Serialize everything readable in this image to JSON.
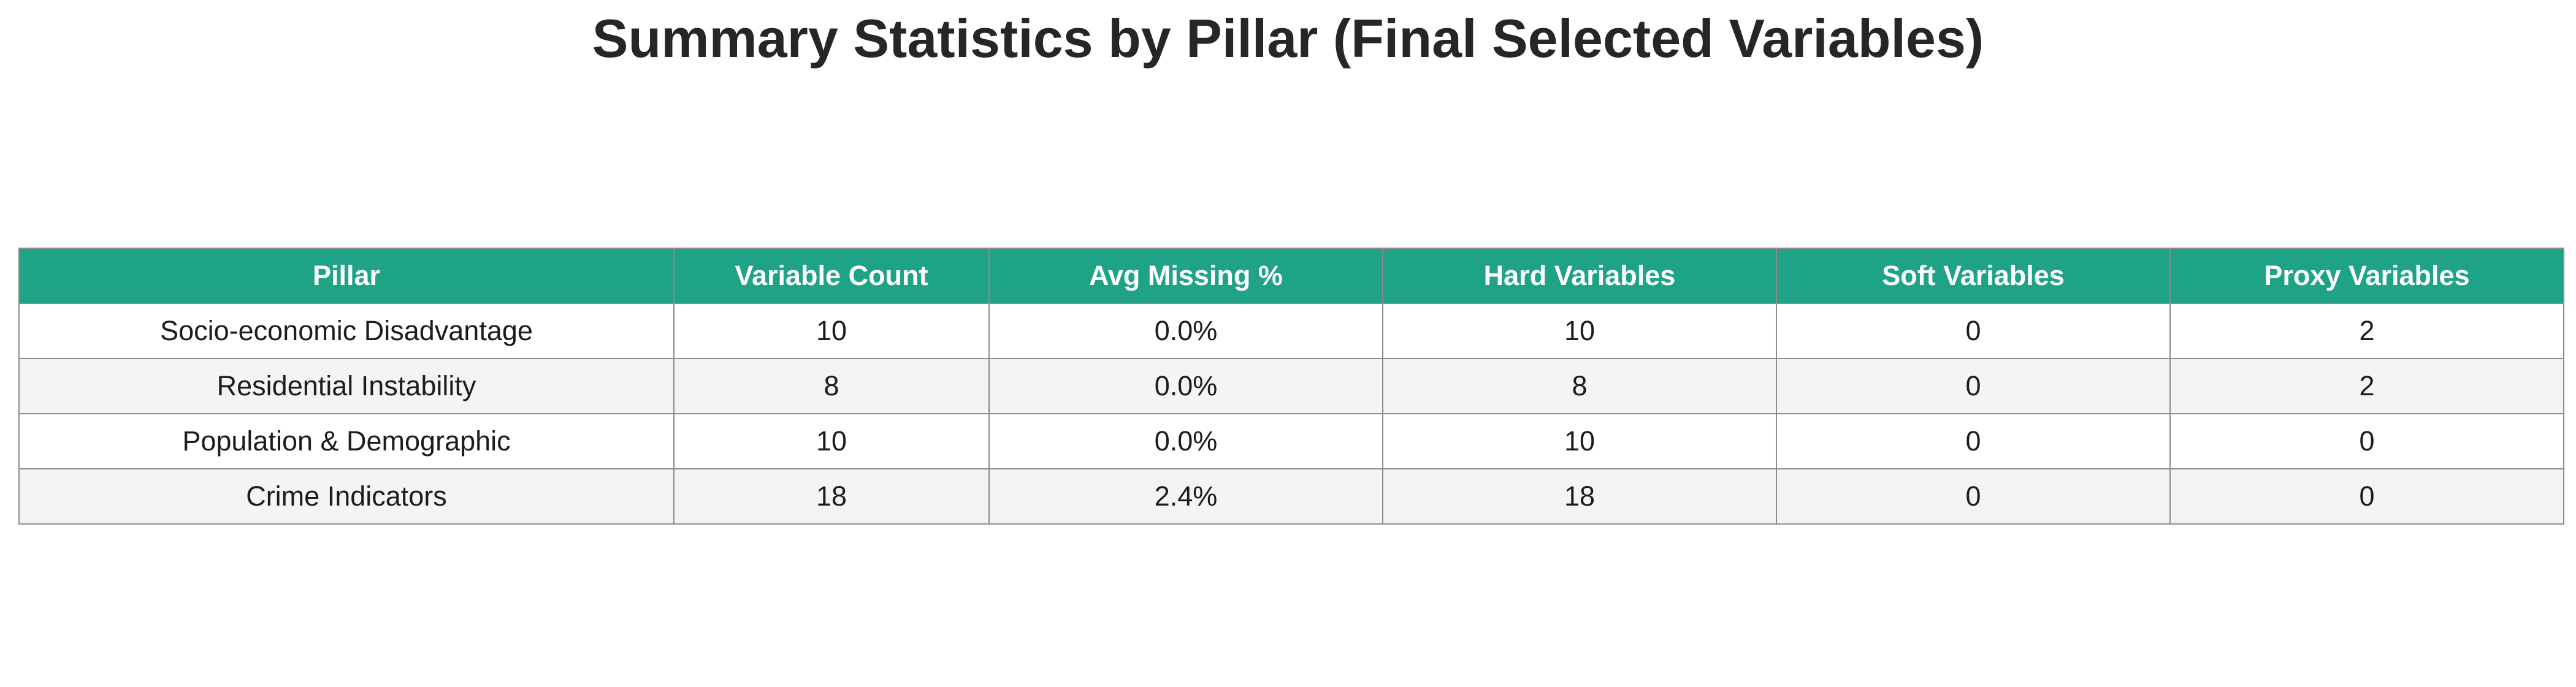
{
  "chart_data": {
    "type": "table",
    "title": "Summary Statistics by Pillar (Final Selected Variables)",
    "columns": [
      "Pillar",
      "Variable Count",
      "Avg Missing %",
      "Hard Variables",
      "Soft Variables",
      "Proxy Variables"
    ],
    "rows": [
      [
        "Socio-economic Disadvantage",
        "10",
        "0.0%",
        "10",
        "0",
        "2"
      ],
      [
        "Residential Instability",
        "8",
        "0.0%",
        "8",
        "0",
        "2"
      ],
      [
        "Population & Demographic",
        "10",
        "0.0%",
        "10",
        "0",
        "0"
      ],
      [
        "Crime Indicators",
        "18",
        "2.4%",
        "18",
        "0",
        "0"
      ]
    ]
  },
  "colors": {
    "header_bg": "#1fa386",
    "header_text": "#ffffff",
    "row_even_bg": "#f4f4f4",
    "row_odd_bg": "#ffffff",
    "border": "#8c8c8c"
  }
}
